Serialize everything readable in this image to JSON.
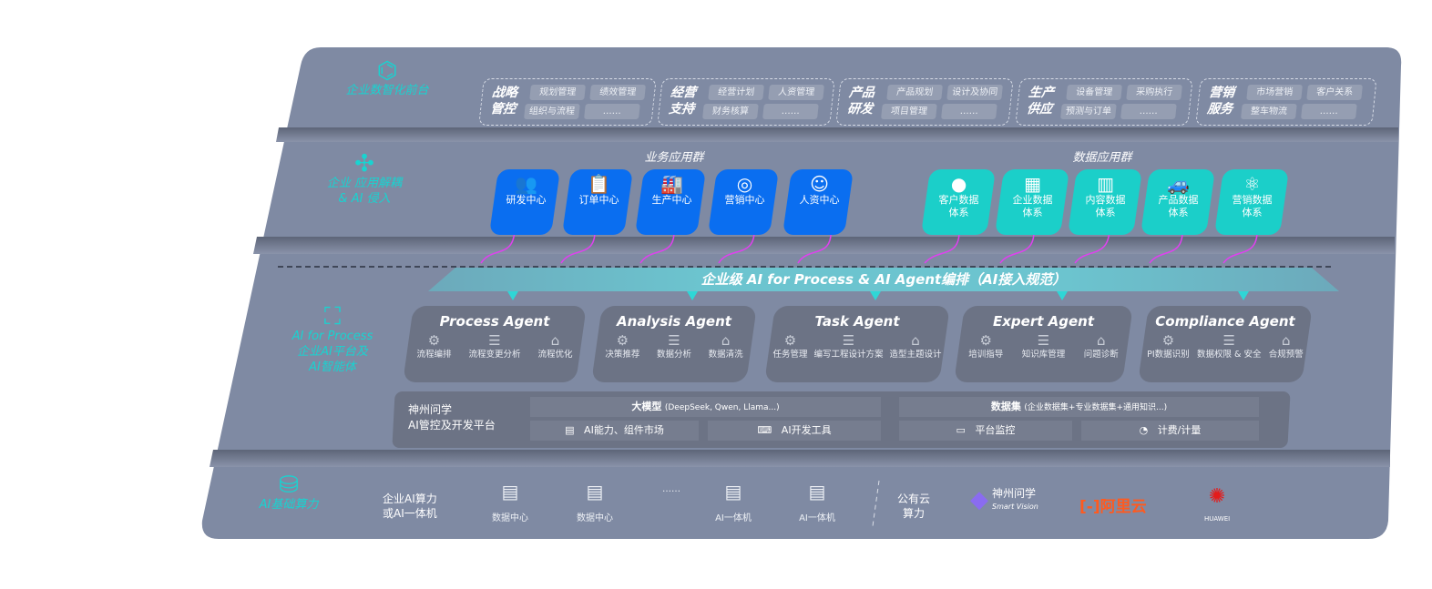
{
  "colors": {
    "panel": "#7f8aa3",
    "accent_cyan": "#19d3d0",
    "business_blue": "#0a6ef0",
    "data_teal": "#1bcfc9",
    "link_magenta": "#e040f0"
  },
  "layer1": {
    "label": "企业数智化前台",
    "icon": "brain-icon",
    "groups": [
      {
        "title": [
          "战略",
          "管控"
        ],
        "chips": [
          "规划管理",
          "绩效管理",
          "组织与流程",
          "……"
        ]
      },
      {
        "title": [
          "经营",
          "支持"
        ],
        "chips": [
          "经营计划",
          "人资管理",
          "财务核算",
          "……"
        ]
      },
      {
        "title": [
          "产品",
          "研发"
        ],
        "chips": [
          "产品规划",
          "设计及协同",
          "项目管理",
          "……"
        ]
      },
      {
        "title": [
          "生产",
          "供应"
        ],
        "chips": [
          "设备管理",
          "采购执行",
          "预测与订单",
          "……"
        ]
      },
      {
        "title": [
          "营销",
          "服务"
        ],
        "chips": [
          "市场营销",
          "客户关系",
          "整车物流",
          "……"
        ]
      }
    ]
  },
  "layer2": {
    "label": [
      "企业 应用解耦",
      "& AI 侵入"
    ],
    "icon": "molecule-icon",
    "business_title": "业务应用群",
    "business": [
      {
        "label": "研发中心",
        "icon": "team-icon"
      },
      {
        "label": "订单中心",
        "icon": "clipboard-icon"
      },
      {
        "label": "生产中心",
        "icon": "factory-icon"
      },
      {
        "label": "营销中心",
        "icon": "target-icon"
      },
      {
        "label": "人资中心",
        "icon": "people-icon"
      }
    ],
    "data_title": "数据应用群",
    "data": [
      {
        "label": [
          "客户数据",
          "体系"
        ],
        "icon": "user-icon"
      },
      {
        "label": [
          "企业数据",
          "体系"
        ],
        "icon": "building-icon"
      },
      {
        "label": [
          "内容数据",
          "体系"
        ],
        "icon": "books-icon"
      },
      {
        "label": [
          "产品数据",
          "体系"
        ],
        "icon": "car-icon"
      },
      {
        "label": [
          "营销数据",
          "体系"
        ],
        "icon": "atom-icon"
      }
    ]
  },
  "banner": "企业级 AI for Process & AI Agent编排（AI接入规范）",
  "layer3": {
    "label": [
      "AI for Process",
      "企业AI平台及",
      "AI智能体"
    ],
    "icon": "face-scan-icon",
    "agents": [
      {
        "title": "Process Agent",
        "features": [
          "流程编排",
          "流程变更分析",
          "流程优化"
        ]
      },
      {
        "title": "Analysis Agent",
        "features": [
          "决策推荐",
          "数据分析",
          "数据清洗"
        ]
      },
      {
        "title": "Task Agent",
        "features": [
          "任务管理",
          "编写工程设计方案",
          "造型主题设计"
        ]
      },
      {
        "title": "Expert Agent",
        "features": [
          "培训指导",
          "知识库管理",
          "问题诊断"
        ]
      },
      {
        "title": "Compliance Agent",
        "features": [
          "PI数据识别",
          "数据权限 & 安全",
          "合规预警"
        ]
      }
    ],
    "platform": {
      "name": [
        "神州问学",
        "AI管控及开发平台"
      ],
      "model": "大模型",
      "model_note": "(DeepSeek, Qwen, Llama...)",
      "dataset": "数据集",
      "dataset_note": "(企业数据集+专业数据集+通用知识...)",
      "cells": [
        "AI能力、组件市场",
        "AI开发工具",
        "平台监控",
        "计费/计量"
      ]
    }
  },
  "layer4": {
    "label": "AI基础算力",
    "icon": "database-icon",
    "enterprise": [
      "企业AI算力",
      "或AI一体机"
    ],
    "servers": [
      "数据中心",
      "数据中心",
      "……",
      "AI一体机",
      "AI一体机"
    ],
    "public": [
      "公有云",
      "算力"
    ],
    "vendors": {
      "smartvision": [
        "神州问学",
        "Smart Vision"
      ],
      "aliyun": "阿里云",
      "huawei": "HUAWEI"
    }
  }
}
